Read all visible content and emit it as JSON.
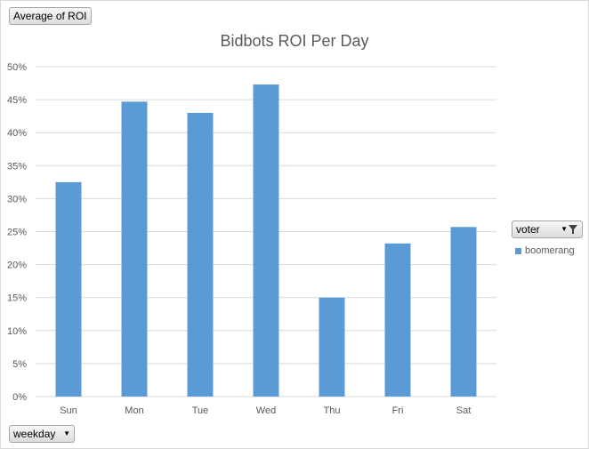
{
  "pivot": {
    "value_field": "Average of ROI",
    "axis_field": "weekday",
    "legend_field": "voter"
  },
  "legend": {
    "items": [
      {
        "label": "boomerang",
        "color": "#5b9bd5"
      }
    ]
  },
  "icons": {
    "dropdown": "chevron-down-icon",
    "filter": "filter-icon"
  },
  "chart_data": {
    "type": "bar",
    "title": "Bidbots ROI Per Day",
    "categories": [
      "Sun",
      "Mon",
      "Tue",
      "Wed",
      "Thu",
      "Fri",
      "Sat"
    ],
    "series": [
      {
        "name": "boomerang",
        "values": [
          32.5,
          44.7,
          43.0,
          47.3,
          15.0,
          23.2,
          25.7
        ],
        "color": "#5b9bd5"
      }
    ],
    "ylim": [
      0,
      50
    ],
    "yticks": [
      "0%",
      "5%",
      "10%",
      "15%",
      "20%",
      "25%",
      "30%",
      "35%",
      "40%",
      "45%",
      "50%"
    ],
    "grid": true,
    "legend_position": "right"
  }
}
